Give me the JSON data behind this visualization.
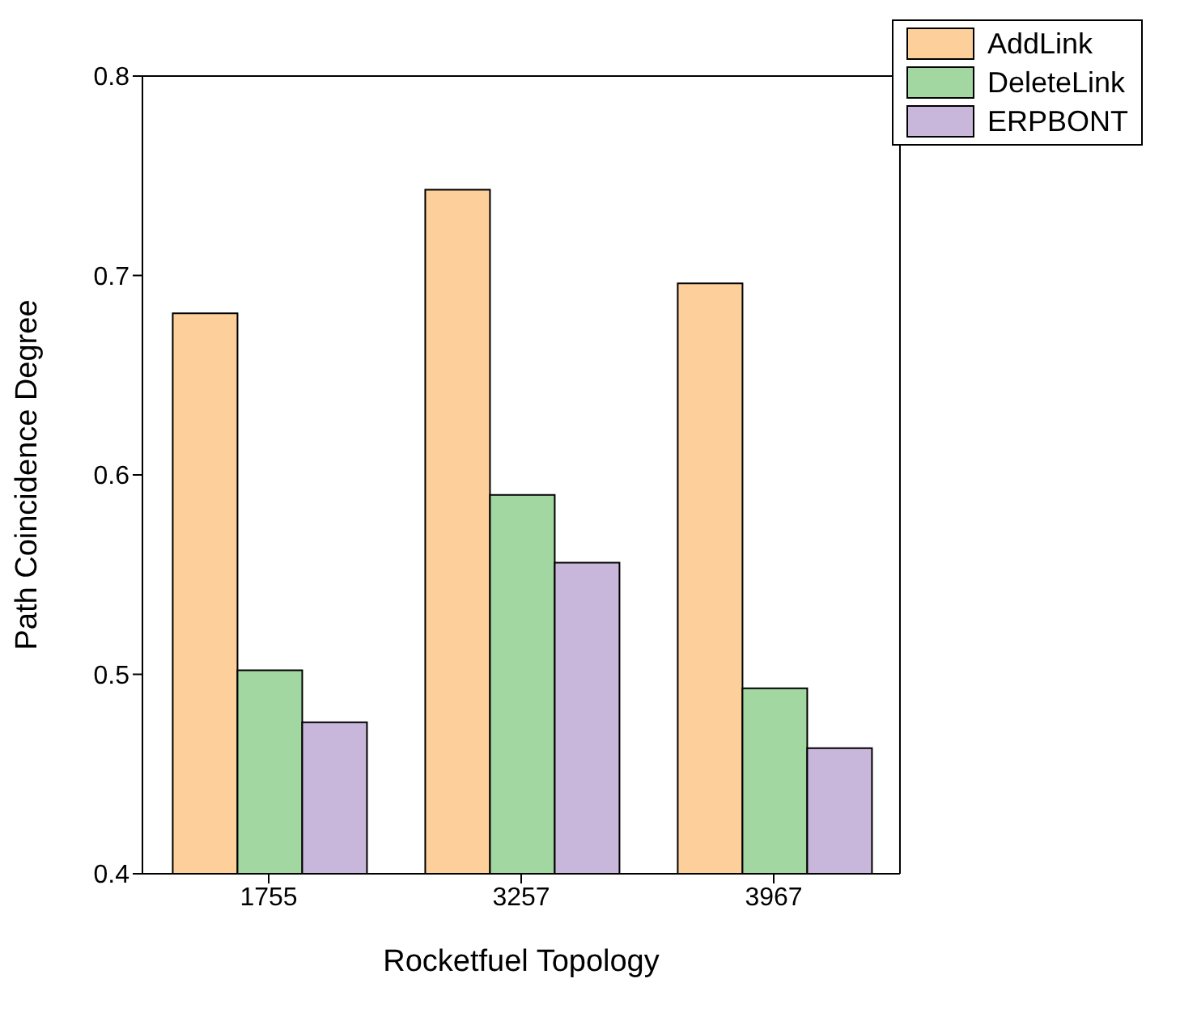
{
  "chart_data": {
    "type": "bar",
    "xlabel": "Rocketfuel Topology",
    "ylabel": "Path Coincidence Degree",
    "categories": [
      "1755",
      "3257",
      "3967"
    ],
    "series": [
      {
        "name": "AddLink",
        "color": "#fdd09b",
        "values": [
          0.681,
          0.743,
          0.696
        ]
      },
      {
        "name": "DeleteLink",
        "color": "#a3d7a1",
        "values": [
          0.502,
          0.59,
          0.493
        ]
      },
      {
        "name": "ERPBONT",
        "color": "#c9b6db",
        "values": [
          0.476,
          0.556,
          0.463
        ]
      }
    ],
    "ylim": [
      0.4,
      0.8
    ],
    "yticks": [
      0.4,
      0.5,
      0.6,
      0.7,
      0.8
    ],
    "grid": false,
    "legend": "top right"
  }
}
